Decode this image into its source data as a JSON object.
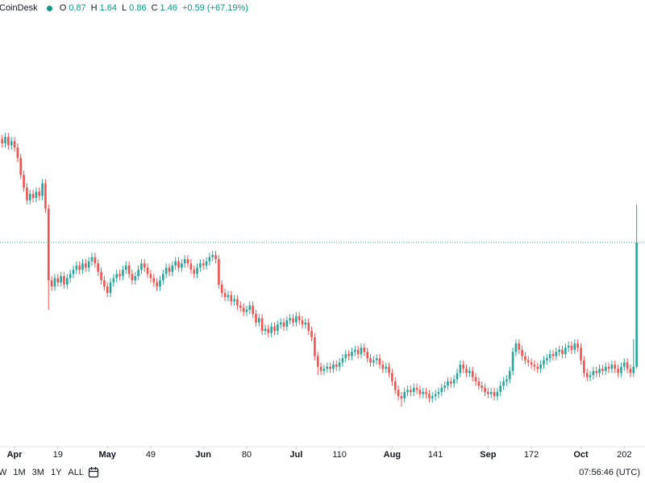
{
  "header": {
    "source": "CoinDesk",
    "labels": [
      "O",
      "H",
      "L",
      "C"
    ],
    "change": "+0.59 (+67.19%)"
  },
  "toolbar": {
    "buttons": [
      "W",
      "1M",
      "3M",
      "1Y",
      "ALL"
    ],
    "clock": "07:56:46 (UTC)"
  },
  "chart_data": {
    "type": "candlestick",
    "up_color": "#26a69a",
    "down_color": "#ef5350",
    "xlim": [
      0.3,
      208.7
    ],
    "ylim": [
      0.49,
      2.61
    ],
    "xticks": [
      {
        "value": 5,
        "label": "Apr"
      },
      19,
      {
        "value": 35,
        "label": "May"
      },
      49,
      {
        "value": 66,
        "label": "Jun"
      },
      80,
      {
        "value": 96,
        "label": "Jul"
      },
      110,
      {
        "value": 127,
        "label": "Aug"
      },
      141,
      {
        "value": 158,
        "label": "Sep"
      },
      172,
      {
        "value": 188,
        "label": "Oct"
      },
      202
    ],
    "open": [
      1.97,
      1.95,
      1.93,
      1.96,
      1.92,
      1.94,
      1.91,
      1.86,
      1.78,
      1.72,
      1.66,
      1.69,
      1.67,
      1.7,
      1.68,
      1.74,
      1.62,
      1.28,
      1.25,
      1.29,
      1.27,
      1.3,
      1.26,
      1.29,
      1.31,
      1.33,
      1.35,
      1.33,
      1.36,
      1.34,
      1.37,
      1.39,
      1.36,
      1.32,
      1.28,
      1.25,
      1.22,
      1.27,
      1.29,
      1.31,
      1.3,
      1.33,
      1.35,
      1.31,
      1.28,
      1.3,
      1.33,
      1.36,
      1.34,
      1.31,
      1.29,
      1.27,
      1.25,
      1.28,
      1.31,
      1.34,
      1.32,
      1.35,
      1.37,
      1.34,
      1.36,
      1.38,
      1.36,
      1.33,
      1.31,
      1.34,
      1.36,
      1.35,
      1.37,
      1.39,
      1.4,
      1.38,
      1.26,
      1.22,
      1.2,
      1.21,
      1.18,
      1.19,
      1.16,
      1.15,
      1.13,
      1.14,
      1.16,
      1.12,
      1.08,
      1.1,
      1.04,
      1.05,
      1.03,
      1.06,
      1.04,
      1.07,
      1.08,
      1.06,
      1.09,
      1.1,
      1.08,
      1.11,
      1.09,
      1.07,
      1.08,
      1.04,
      1.01,
      0.92,
      0.87,
      0.85,
      0.86,
      0.87,
      0.86,
      0.88,
      0.87,
      0.89,
      0.91,
      0.93,
      0.92,
      0.94,
      0.95,
      0.93,
      0.96,
      0.94,
      0.91,
      0.89,
      0.9,
      0.91,
      0.88,
      0.86,
      0.87,
      0.84,
      0.8,
      0.76,
      0.73,
      0.72,
      0.75,
      0.76,
      0.75,
      0.77,
      0.76,
      0.74,
      0.75,
      0.74,
      0.72,
      0.73,
      0.74,
      0.75,
      0.77,
      0.78,
      0.8,
      0.79,
      0.81,
      0.84,
      0.88,
      0.86,
      0.84,
      0.85,
      0.82,
      0.8,
      0.78,
      0.77,
      0.75,
      0.74,
      0.75,
      0.73,
      0.75,
      0.78,
      0.8,
      0.81,
      0.85,
      0.94,
      0.98,
      0.95,
      0.92,
      0.9,
      0.89,
      0.88,
      0.87,
      0.86,
      0.88,
      0.9,
      0.91,
      0.93,
      0.92,
      0.94,
      0.95,
      0.93,
      0.96,
      0.97,
      0.95,
      0.98,
      0.96,
      0.9,
      0.84,
      0.82,
      0.83,
      0.85,
      0.84,
      0.86,
      0.85,
      0.87,
      0.86,
      0.88,
      0.86,
      0.84,
      0.87,
      0.89,
      0.86,
      0.84,
      0.87
    ],
    "high": [
      1.99,
      1.97,
      1.98,
      1.98,
      1.96,
      1.96,
      1.93,
      1.88,
      1.8,
      1.74,
      1.71,
      1.71,
      1.72,
      1.72,
      1.76,
      1.76,
      1.64,
      1.3,
      1.31,
      1.31,
      1.32,
      1.32,
      1.31,
      1.33,
      1.35,
      1.37,
      1.37,
      1.38,
      1.38,
      1.39,
      1.41,
      1.41,
      1.38,
      1.34,
      1.3,
      1.27,
      1.29,
      1.31,
      1.33,
      1.33,
      1.35,
      1.37,
      1.37,
      1.33,
      1.32,
      1.35,
      1.38,
      1.38,
      1.36,
      1.33,
      1.31,
      1.29,
      1.3,
      1.33,
      1.36,
      1.36,
      1.37,
      1.39,
      1.39,
      1.38,
      1.4,
      1.4,
      1.38,
      1.35,
      1.36,
      1.38,
      1.38,
      1.39,
      1.41,
      1.42,
      1.42,
      1.4,
      1.28,
      1.24,
      1.23,
      1.23,
      1.21,
      1.21,
      1.18,
      1.17,
      1.16,
      1.18,
      1.18,
      1.14,
      1.12,
      1.12,
      1.07,
      1.07,
      1.08,
      1.08,
      1.09,
      1.1,
      1.1,
      1.11,
      1.12,
      1.12,
      1.13,
      1.13,
      1.11,
      1.1,
      1.1,
      1.06,
      1.03,
      0.94,
      0.89,
      0.88,
      0.89,
      0.89,
      0.9,
      0.9,
      0.91,
      0.93,
      0.95,
      0.95,
      0.96,
      0.97,
      0.97,
      0.98,
      0.98,
      0.96,
      0.93,
      0.92,
      0.93,
      0.93,
      0.9,
      0.89,
      0.89,
      0.86,
      0.82,
      0.78,
      0.75,
      0.77,
      0.78,
      0.78,
      0.79,
      0.79,
      0.78,
      0.77,
      0.77,
      0.76,
      0.75,
      0.76,
      0.77,
      0.79,
      0.8,
      0.82,
      0.82,
      0.83,
      0.86,
      0.9,
      0.9,
      0.88,
      0.87,
      0.87,
      0.84,
      0.82,
      0.8,
      0.79,
      0.77,
      0.77,
      0.77,
      0.77,
      0.8,
      0.82,
      0.83,
      0.87,
      0.96,
      1.0,
      1.0,
      0.97,
      0.94,
      0.92,
      0.91,
      0.9,
      0.89,
      0.9,
      0.92,
      0.93,
      0.95,
      0.95,
      0.96,
      0.97,
      0.97,
      0.98,
      0.99,
      0.99,
      1.0,
      1.0,
      0.98,
      0.92,
      0.86,
      0.85,
      0.87,
      0.87,
      0.88,
      0.88,
      0.89,
      0.89,
      0.9,
      0.9,
      0.88,
      0.89,
      0.91,
      0.91,
      0.88,
      1.0,
      1.64
    ],
    "low": [
      1.93,
      1.91,
      1.91,
      1.9,
      1.9,
      1.89,
      1.84,
      1.76,
      1.7,
      1.64,
      1.64,
      1.65,
      1.65,
      1.66,
      1.66,
      1.6,
      1.14,
      1.23,
      1.23,
      1.25,
      1.25,
      1.24,
      1.24,
      1.27,
      1.29,
      1.31,
      1.31,
      1.31,
      1.32,
      1.32,
      1.35,
      1.34,
      1.3,
      1.26,
      1.23,
      1.2,
      1.2,
      1.25,
      1.27,
      1.28,
      1.28,
      1.31,
      1.29,
      1.26,
      1.26,
      1.28,
      1.31,
      1.32,
      1.29,
      1.27,
      1.25,
      1.23,
      1.23,
      1.26,
      1.29,
      1.3,
      1.3,
      1.33,
      1.32,
      1.32,
      1.34,
      1.34,
      1.31,
      1.29,
      1.29,
      1.32,
      1.33,
      1.33,
      1.35,
      1.37,
      1.36,
      1.24,
      1.2,
      1.18,
      1.18,
      1.16,
      1.16,
      1.14,
      1.13,
      1.11,
      1.11,
      1.12,
      1.1,
      1.06,
      1.06,
      1.02,
      1.02,
      1.01,
      1.01,
      1.02,
      1.02,
      1.05,
      1.04,
      1.04,
      1.07,
      1.06,
      1.06,
      1.07,
      1.05,
      1.05,
      1.02,
      0.99,
      0.9,
      0.83,
      0.83,
      0.83,
      0.84,
      0.84,
      0.84,
      0.85,
      0.85,
      0.87,
      0.89,
      0.9,
      0.9,
      0.92,
      0.91,
      0.91,
      0.92,
      0.89,
      0.87,
      0.87,
      0.88,
      0.86,
      0.84,
      0.84,
      0.82,
      0.78,
      0.74,
      0.71,
      0.68,
      0.7,
      0.73,
      0.73,
      0.73,
      0.74,
      0.72,
      0.72,
      0.72,
      0.7,
      0.7,
      0.71,
      0.72,
      0.73,
      0.75,
      0.76,
      0.77,
      0.77,
      0.79,
      0.82,
      0.84,
      0.82,
      0.82,
      0.8,
      0.78,
      0.76,
      0.75,
      0.73,
      0.72,
      0.72,
      0.71,
      0.71,
      0.73,
      0.76,
      0.78,
      0.79,
      0.83,
      0.92,
      0.93,
      0.9,
      0.88,
      0.87,
      0.86,
      0.85,
      0.84,
      0.84,
      0.86,
      0.88,
      0.89,
      0.9,
      0.9,
      0.92,
      0.91,
      0.91,
      0.94,
      0.93,
      0.93,
      0.94,
      0.88,
      0.82,
      0.8,
      0.8,
      0.81,
      0.82,
      0.82,
      0.83,
      0.83,
      0.84,
      0.84,
      0.84,
      0.82,
      0.82,
      0.85,
      0.84,
      0.82,
      0.82,
      0.86
    ],
    "close": [
      1.95,
      1.93,
      1.96,
      1.92,
      1.94,
      1.91,
      1.86,
      1.78,
      1.72,
      1.66,
      1.69,
      1.67,
      1.7,
      1.68,
      1.74,
      1.62,
      1.28,
      1.25,
      1.29,
      1.27,
      1.3,
      1.26,
      1.29,
      1.31,
      1.33,
      1.35,
      1.33,
      1.36,
      1.34,
      1.37,
      1.39,
      1.36,
      1.32,
      1.28,
      1.25,
      1.22,
      1.27,
      1.29,
      1.31,
      1.3,
      1.33,
      1.35,
      1.31,
      1.28,
      1.3,
      1.33,
      1.36,
      1.34,
      1.31,
      1.29,
      1.27,
      1.25,
      1.28,
      1.31,
      1.34,
      1.32,
      1.35,
      1.37,
      1.34,
      1.36,
      1.38,
      1.36,
      1.33,
      1.31,
      1.34,
      1.36,
      1.35,
      1.37,
      1.39,
      1.4,
      1.38,
      1.26,
      1.22,
      1.2,
      1.21,
      1.18,
      1.19,
      1.16,
      1.15,
      1.13,
      1.14,
      1.16,
      1.12,
      1.08,
      1.1,
      1.04,
      1.05,
      1.03,
      1.06,
      1.04,
      1.07,
      1.08,
      1.06,
      1.09,
      1.1,
      1.08,
      1.11,
      1.09,
      1.07,
      1.08,
      1.04,
      1.01,
      0.92,
      0.87,
      0.85,
      0.86,
      0.87,
      0.86,
      0.88,
      0.87,
      0.89,
      0.91,
      0.93,
      0.92,
      0.94,
      0.95,
      0.93,
      0.96,
      0.94,
      0.91,
      0.89,
      0.9,
      0.91,
      0.88,
      0.86,
      0.87,
      0.84,
      0.8,
      0.76,
      0.73,
      0.72,
      0.75,
      0.76,
      0.75,
      0.77,
      0.76,
      0.74,
      0.75,
      0.74,
      0.72,
      0.73,
      0.74,
      0.75,
      0.77,
      0.78,
      0.8,
      0.79,
      0.81,
      0.84,
      0.88,
      0.86,
      0.84,
      0.85,
      0.82,
      0.8,
      0.78,
      0.77,
      0.75,
      0.74,
      0.75,
      0.73,
      0.75,
      0.78,
      0.8,
      0.81,
      0.85,
      0.94,
      0.98,
      0.95,
      0.92,
      0.9,
      0.89,
      0.88,
      0.87,
      0.86,
      0.88,
      0.9,
      0.91,
      0.93,
      0.92,
      0.94,
      0.95,
      0.93,
      0.96,
      0.97,
      0.95,
      0.98,
      0.96,
      0.9,
      0.84,
      0.82,
      0.83,
      0.85,
      0.84,
      0.86,
      0.85,
      0.87,
      0.86,
      0.88,
      0.86,
      0.84,
      0.87,
      0.89,
      0.86,
      0.84,
      0.87,
      1.46
    ]
  }
}
